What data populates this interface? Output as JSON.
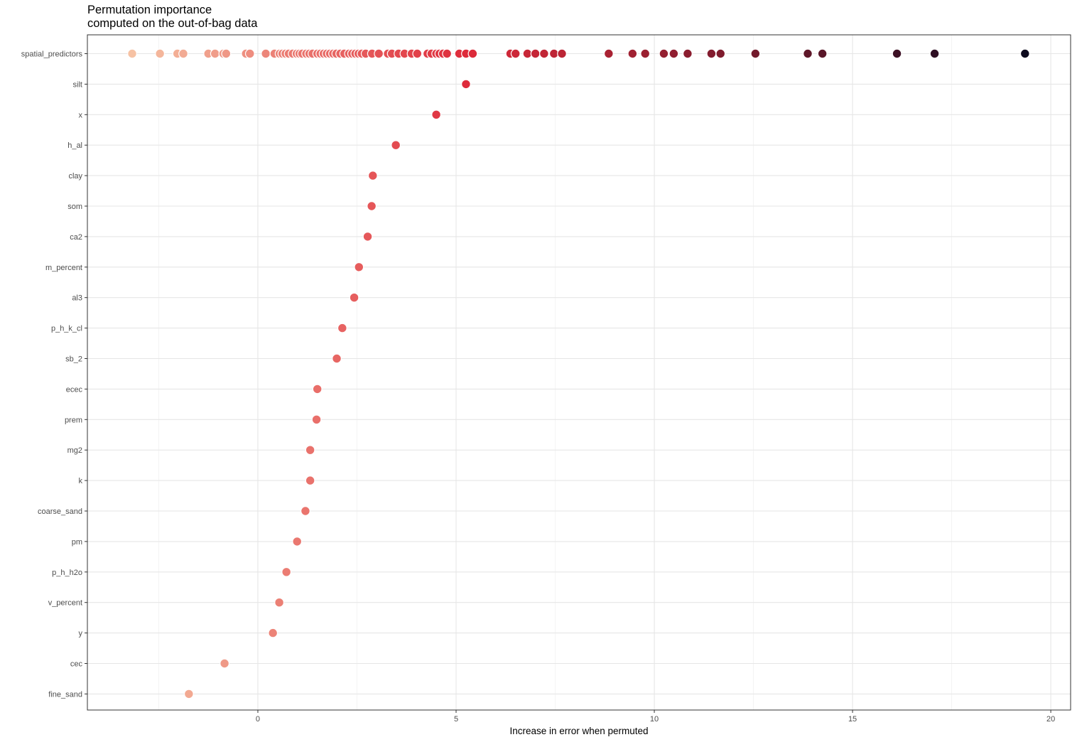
{
  "chart_data": {
    "type": "scatter",
    "title": "Permutation importance",
    "subtitle": "computed on the out-of-bag data",
    "xlabel": "Increase in error when permuted",
    "ylabel": "",
    "xlim": [
      -4.3,
      20.5
    ],
    "x_ticks": [
      0,
      5,
      10,
      15,
      20
    ],
    "x_tick_labels": [
      "0",
      "5",
      "10",
      "15",
      "20"
    ],
    "grid": true,
    "legend": "none",
    "color_scale": {
      "type": "sequential",
      "low_color": "#f6c3a4",
      "mid_color": "#de2a3a",
      "high_color": "#0c0a1e",
      "domain": [
        -3.2,
        5.3,
        19.4
      ]
    },
    "categories": [
      "spatial_predictors",
      "silt",
      "x",
      "h_al",
      "clay",
      "som",
      "ca2",
      "m_percent",
      "al3",
      "p_h_k_cl",
      "sb_2",
      "ecec",
      "prem",
      "mg2",
      "k",
      "coarse_sand",
      "pm",
      "p_h_h2o",
      "v_percent",
      "y",
      "cec",
      "fine_sand"
    ],
    "points": [
      {
        "variable": "silt",
        "importance": 5.25
      },
      {
        "variable": "x",
        "importance": 4.5
      },
      {
        "variable": "h_al",
        "importance": 3.48
      },
      {
        "variable": "clay",
        "importance": 2.9
      },
      {
        "variable": "som",
        "importance": 2.87
      },
      {
        "variable": "ca2",
        "importance": 2.77
      },
      {
        "variable": "m_percent",
        "importance": 2.55
      },
      {
        "variable": "al3",
        "importance": 2.43
      },
      {
        "variable": "p_h_k_cl",
        "importance": 2.13
      },
      {
        "variable": "sb_2",
        "importance": 1.99
      },
      {
        "variable": "ecec",
        "importance": 1.5
      },
      {
        "variable": "prem",
        "importance": 1.48
      },
      {
        "variable": "mg2",
        "importance": 1.32
      },
      {
        "variable": "k",
        "importance": 1.32
      },
      {
        "variable": "coarse_sand",
        "importance": 1.2
      },
      {
        "variable": "pm",
        "importance": 0.99
      },
      {
        "variable": "p_h_h2o",
        "importance": 0.72
      },
      {
        "variable": "v_percent",
        "importance": 0.54
      },
      {
        "variable": "y",
        "importance": 0.38
      },
      {
        "variable": "cec",
        "importance": -0.84
      },
      {
        "variable": "fine_sand",
        "importance": -1.74
      }
    ],
    "spatial_predictors_values": [
      -3.17,
      -2.47,
      -2.03,
      -1.88,
      -1.25,
      -1.08,
      -0.87,
      -0.8,
      -0.3,
      -0.2,
      0.2,
      0.42,
      0.55,
      0.62,
      0.7,
      0.78,
      0.88,
      0.98,
      1.05,
      1.12,
      1.22,
      1.3,
      1.38,
      1.5,
      1.58,
      1.66,
      1.74,
      1.82,
      1.9,
      1.98,
      2.08,
      2.18,
      2.3,
      2.38,
      2.46,
      2.54,
      2.62,
      2.72,
      2.88,
      3.05,
      3.28,
      3.38,
      3.55,
      3.7,
      3.88,
      4.02,
      4.28,
      4.38,
      4.5,
      4.58,
      4.67,
      4.77,
      5.08,
      5.25,
      5.42,
      6.37,
      6.5,
      6.8,
      7.0,
      7.22,
      7.47,
      7.67,
      8.85,
      9.45,
      9.77,
      10.24,
      10.49,
      10.84,
      11.44,
      11.67,
      12.55,
      13.87,
      14.24,
      16.12,
      17.07,
      19.35
    ]
  }
}
